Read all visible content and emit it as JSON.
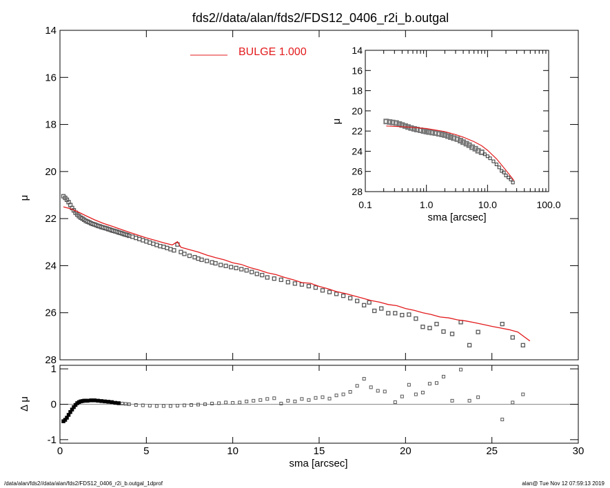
{
  "title": "fds2//data/alan/fds2/FDS12_0406_r2i_b.outgal",
  "legend": {
    "label": "BULGE  1.000",
    "color": "#e31a1c"
  },
  "footer": {
    "left": "/data/alan/fds2//data/alan/fds2/FDS12_0406_r2i_b.outgal_1dprof",
    "right": "alan@  Tue Nov 12 07:59:13 2019"
  },
  "colors": {
    "data": "#555555",
    "model": "#e31a1c",
    "axis": "#000000"
  },
  "chart_data": [
    {
      "name": "main-profile",
      "type": "scatter",
      "xlim": [
        0,
        30
      ],
      "ylim": [
        28,
        14
      ],
      "x_ticks": [
        0,
        5,
        10,
        15,
        20,
        25,
        30
      ],
      "y_ticks": [
        14,
        16,
        18,
        20,
        22,
        24,
        26,
        28
      ],
      "xlabel": "",
      "ylabel": "μ",
      "series": [
        {
          "name": "data",
          "type": "scatter",
          "x": [
            0.2,
            0.3,
            0.4,
            0.5,
            0.6,
            0.7,
            0.8,
            0.9,
            1.0,
            1.1,
            1.2,
            1.3,
            1.4,
            1.5,
            1.6,
            1.7,
            1.8,
            1.9,
            2.0,
            2.1,
            2.2,
            2.3,
            2.4,
            2.5,
            2.6,
            2.7,
            2.8,
            2.9,
            3.0,
            3.1,
            3.2,
            3.3,
            3.4,
            3.5,
            3.6,
            3.7,
            3.8,
            3.9,
            4.0,
            4.2,
            4.4,
            4.6,
            4.8,
            5.0,
            5.2,
            5.4,
            5.6,
            5.8,
            6.0,
            6.2,
            6.4,
            6.6,
            6.8,
            7.0,
            7.2,
            7.5,
            7.8,
            8.0,
            8.2,
            8.5,
            8.8,
            9.0,
            9.3,
            9.6,
            9.9,
            10.2,
            10.5,
            10.8,
            11.1,
            11.4,
            11.7,
            12.0,
            12.4,
            12.8,
            13.2,
            13.6,
            14.0,
            14.4,
            14.8,
            15.2,
            15.6,
            16.0,
            16.4,
            16.8,
            17.2,
            17.6,
            17.9,
            18.2,
            18.6,
            19.0,
            19.4,
            19.8,
            20.2,
            20.6,
            21.0,
            21.4,
            21.8,
            22.2,
            22.7,
            23.2,
            23.7,
            24.2,
            25.6,
            26.2,
            26.8
          ],
          "y": [
            21.05,
            21.12,
            21.2,
            21.3,
            21.42,
            21.55,
            21.65,
            21.75,
            21.83,
            21.9,
            21.96,
            22.0,
            22.05,
            22.1,
            22.13,
            22.16,
            22.2,
            22.23,
            22.25,
            22.28,
            22.31,
            22.33,
            22.36,
            22.38,
            22.4,
            22.42,
            22.45,
            22.47,
            22.5,
            22.52,
            22.54,
            22.56,
            22.59,
            22.61,
            22.63,
            22.66,
            22.68,
            22.7,
            22.73,
            22.77,
            22.82,
            22.87,
            22.92,
            22.97,
            23.02,
            23.07,
            23.12,
            23.17,
            23.2,
            23.25,
            23.3,
            23.35,
            23.1,
            23.42,
            23.5,
            23.58,
            23.64,
            23.7,
            23.75,
            23.8,
            23.86,
            23.9,
            23.97,
            24.01,
            24.06,
            24.1,
            24.15,
            24.2,
            24.27,
            24.35,
            24.4,
            24.5,
            24.55,
            24.6,
            24.7,
            24.76,
            24.8,
            24.87,
            24.93,
            25.05,
            25.12,
            25.2,
            25.28,
            25.38,
            25.5,
            25.68,
            25.56,
            25.92,
            25.82,
            26.02,
            26.02,
            26.1,
            26.08,
            26.25,
            26.6,
            26.65,
            26.48,
            26.8,
            26.9,
            26.4,
            27.38,
            26.82,
            26.48,
            27.05,
            27.38
          ]
        },
        {
          "name": "model",
          "type": "line",
          "x": [
            0.2,
            0.6,
            1.0,
            1.5,
            2.0,
            2.5,
            3.0,
            3.5,
            4.0,
            4.5,
            5.0,
            5.5,
            6.0,
            6.5,
            6.8,
            7.0,
            7.5,
            8.0,
            8.5,
            9.0,
            9.5,
            10.0,
            10.5,
            11.0,
            11.5,
            12.0,
            12.5,
            13.0,
            13.5,
            14.0,
            14.5,
            15.0,
            15.5,
            16.0,
            16.5,
            17.0,
            17.5,
            18.0,
            18.5,
            19.0,
            19.5,
            20.0,
            20.5,
            21.0,
            21.5,
            22.0,
            22.5,
            23.0,
            23.5,
            24.0,
            24.5,
            25.0,
            25.5,
            26.0,
            26.5,
            27.2
          ],
          "y": [
            21.5,
            21.58,
            21.7,
            21.88,
            22.05,
            22.2,
            22.32,
            22.45,
            22.58,
            22.7,
            22.82,
            22.92,
            23.03,
            23.12,
            22.98,
            23.22,
            23.32,
            23.42,
            23.55,
            23.66,
            23.75,
            23.88,
            23.95,
            24.08,
            24.18,
            24.3,
            24.38,
            24.5,
            24.6,
            24.72,
            24.75,
            24.88,
            24.98,
            25.1,
            25.18,
            25.28,
            25.38,
            25.48,
            25.55,
            25.65,
            25.7,
            25.82,
            25.9,
            26.0,
            26.08,
            26.18,
            26.22,
            26.3,
            26.35,
            26.42,
            26.5,
            26.58,
            26.65,
            26.72,
            26.82,
            27.2
          ]
        }
      ]
    },
    {
      "name": "residual-profile",
      "type": "scatter",
      "xlim": [
        0,
        30
      ],
      "ylim": [
        -1.1,
        1.1
      ],
      "x_ticks": [
        0,
        5,
        10,
        15,
        20,
        25,
        30
      ],
      "y_ticks": [
        -1,
        0,
        1
      ],
      "xlabel": "sma [arcsec]",
      "ylabel": "Δ μ",
      "series": [
        {
          "name": "residual",
          "type": "scatter",
          "x": [
            0.2,
            0.3,
            0.4,
            0.5,
            0.6,
            0.7,
            0.8,
            0.9,
            1.0,
            1.1,
            1.2,
            1.3,
            1.4,
            1.5,
            1.6,
            1.8,
            2.0,
            2.2,
            2.4,
            2.6,
            2.8,
            3.0,
            3.2,
            3.4,
            3.6,
            3.8,
            4.0,
            4.4,
            4.8,
            5.2,
            5.6,
            6.0,
            6.4,
            6.8,
            7.2,
            7.6,
            8.0,
            8.4,
            8.8,
            9.2,
            9.6,
            10.0,
            10.4,
            10.8,
            11.2,
            11.6,
            12.0,
            12.4,
            12.8,
            13.2,
            13.6,
            14.0,
            14.4,
            14.8,
            15.2,
            15.6,
            16.0,
            16.4,
            16.8,
            17.2,
            17.6,
            18.0,
            18.4,
            18.8,
            19.4,
            19.8,
            20.2,
            20.6,
            21.0,
            21.4,
            21.8,
            22.2,
            22.7,
            23.2,
            23.7,
            24.2,
            25.6,
            26.2,
            26.8
          ],
          "y": [
            -0.48,
            -0.44,
            -0.38,
            -0.3,
            -0.22,
            -0.15,
            -0.08,
            -0.02,
            0.03,
            0.06,
            0.08,
            0.09,
            0.1,
            0.1,
            0.1,
            0.11,
            0.11,
            0.1,
            0.09,
            0.08,
            0.07,
            0.06,
            0.04,
            0.03,
            0.02,
            0.01,
            0.0,
            -0.02,
            -0.03,
            -0.04,
            -0.05,
            -0.05,
            -0.05,
            -0.04,
            -0.03,
            -0.02,
            -0.01,
            0.0,
            0.02,
            0.03,
            0.05,
            0.04,
            0.05,
            0.08,
            0.1,
            0.12,
            0.15,
            0.17,
            0.02,
            0.1,
            0.08,
            0.15,
            0.12,
            0.18,
            0.2,
            0.16,
            0.25,
            0.28,
            0.35,
            0.52,
            0.72,
            0.48,
            0.38,
            0.36,
            0.06,
            0.22,
            0.55,
            0.28,
            0.33,
            0.58,
            0.6,
            0.78,
            0.1,
            0.98,
            0.1,
            0.2,
            -0.43,
            0.05,
            0.28
          ]
        }
      ]
    },
    {
      "name": "inset-log-profile",
      "type": "scatter",
      "xscale": "log",
      "xlim": [
        0.1,
        100.0
      ],
      "ylim": [
        28,
        14
      ],
      "x_ticks": [
        "0.1",
        "1.0",
        "10.0",
        "100.0"
      ],
      "y_ticks": [
        14,
        16,
        18,
        20,
        22,
        24,
        26,
        28
      ],
      "xlabel": "sma [arcsec]",
      "ylabel": "μ",
      "series": [
        {
          "name": "data",
          "type": "scatter",
          "x": [
            0.22,
            0.25,
            0.28,
            0.32,
            0.36,
            0.4,
            0.45,
            0.5,
            0.56,
            0.63,
            0.7,
            0.8,
            0.9,
            1.0,
            1.1,
            1.25,
            1.4,
            1.6,
            1.8,
            2.0,
            2.25,
            2.5,
            2.8,
            3.2,
            3.6,
            4.0,
            4.5,
            5.0,
            5.6,
            6.3,
            7.0,
            8.0,
            9.0,
            10.0,
            11.0,
            12.5,
            14.0,
            15.5,
            17.0,
            18.5,
            20.0,
            22.0,
            24.0,
            26.0
          ],
          "y": [
            21.05,
            21.1,
            21.15,
            21.2,
            21.3,
            21.4,
            21.5,
            21.6,
            21.7,
            21.78,
            21.85,
            21.92,
            22.0,
            22.05,
            22.1,
            22.15,
            22.2,
            22.27,
            22.33,
            22.4,
            22.5,
            22.6,
            22.7,
            22.8,
            22.95,
            23.1,
            23.25,
            23.4,
            23.6,
            23.75,
            23.95,
            24.1,
            24.3,
            24.5,
            24.7,
            25.0,
            25.3,
            25.6,
            25.95,
            26.1,
            26.4,
            26.6,
            26.8,
            27.1
          ]
        },
        {
          "name": "model",
          "type": "line",
          "x": [
            0.22,
            0.5,
            1.0,
            2.0,
            3.0,
            4.0,
            6.0,
            8.0,
            10.0,
            14.0,
            18.0,
            22.0,
            27.0
          ],
          "y": [
            21.5,
            21.6,
            21.75,
            22.05,
            22.35,
            22.6,
            23.05,
            23.45,
            23.9,
            24.75,
            25.55,
            26.2,
            26.9
          ]
        }
      ]
    }
  ]
}
